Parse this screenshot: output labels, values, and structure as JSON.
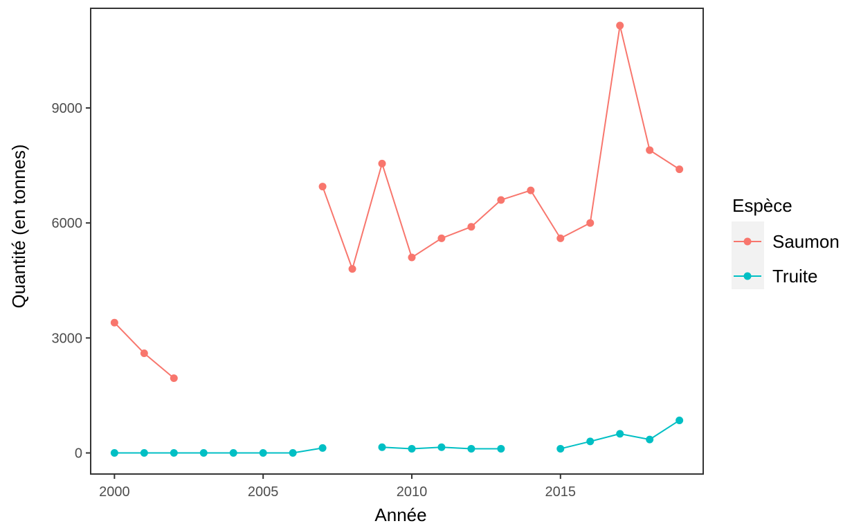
{
  "chart_data": {
    "type": "line",
    "xlabel": "Année",
    "ylabel": "Quantité (en tonnes)",
    "xlim": [
      1999.2,
      2019.8
    ],
    "ylim": [
      -550,
      11600
    ],
    "x_ticks": [
      2000,
      2005,
      2010,
      2015
    ],
    "y_ticks": [
      0,
      3000,
      6000,
      9000
    ],
    "grid": false,
    "legend": {
      "title": "Espèce",
      "placement": "right"
    },
    "series": [
      {
        "name": "Saumon",
        "color": "#F8766D",
        "points": [
          [
            2000,
            3400
          ],
          [
            2001,
            2600
          ],
          [
            2002,
            1950
          ],
          [
            2003,
            null
          ],
          [
            2004,
            null
          ],
          [
            2005,
            null
          ],
          [
            2006,
            null
          ],
          [
            2007,
            6950
          ],
          [
            2008,
            4800
          ],
          [
            2009,
            7550
          ],
          [
            2010,
            5100
          ],
          [
            2011,
            5600
          ],
          [
            2012,
            5900
          ],
          [
            2013,
            6600
          ],
          [
            2014,
            6850
          ],
          [
            2015,
            5600
          ],
          [
            2016,
            6000
          ],
          [
            2017,
            11150
          ],
          [
            2018,
            7900
          ],
          [
            2019,
            7400
          ]
        ]
      },
      {
        "name": "Truite",
        "color": "#00BFC4",
        "points": [
          [
            2000,
            0
          ],
          [
            2001,
            0
          ],
          [
            2002,
            0
          ],
          [
            2003,
            0
          ],
          [
            2004,
            0
          ],
          [
            2005,
            0
          ],
          [
            2006,
            0
          ],
          [
            2007,
            130
          ],
          [
            2008,
            null
          ],
          [
            2009,
            150
          ],
          [
            2010,
            110
          ],
          [
            2011,
            150
          ],
          [
            2012,
            110
          ],
          [
            2013,
            110
          ],
          [
            2014,
            null
          ],
          [
            2015,
            110
          ],
          [
            2016,
            300
          ],
          [
            2017,
            500
          ],
          [
            2018,
            350
          ],
          [
            2019,
            850
          ]
        ]
      }
    ]
  }
}
